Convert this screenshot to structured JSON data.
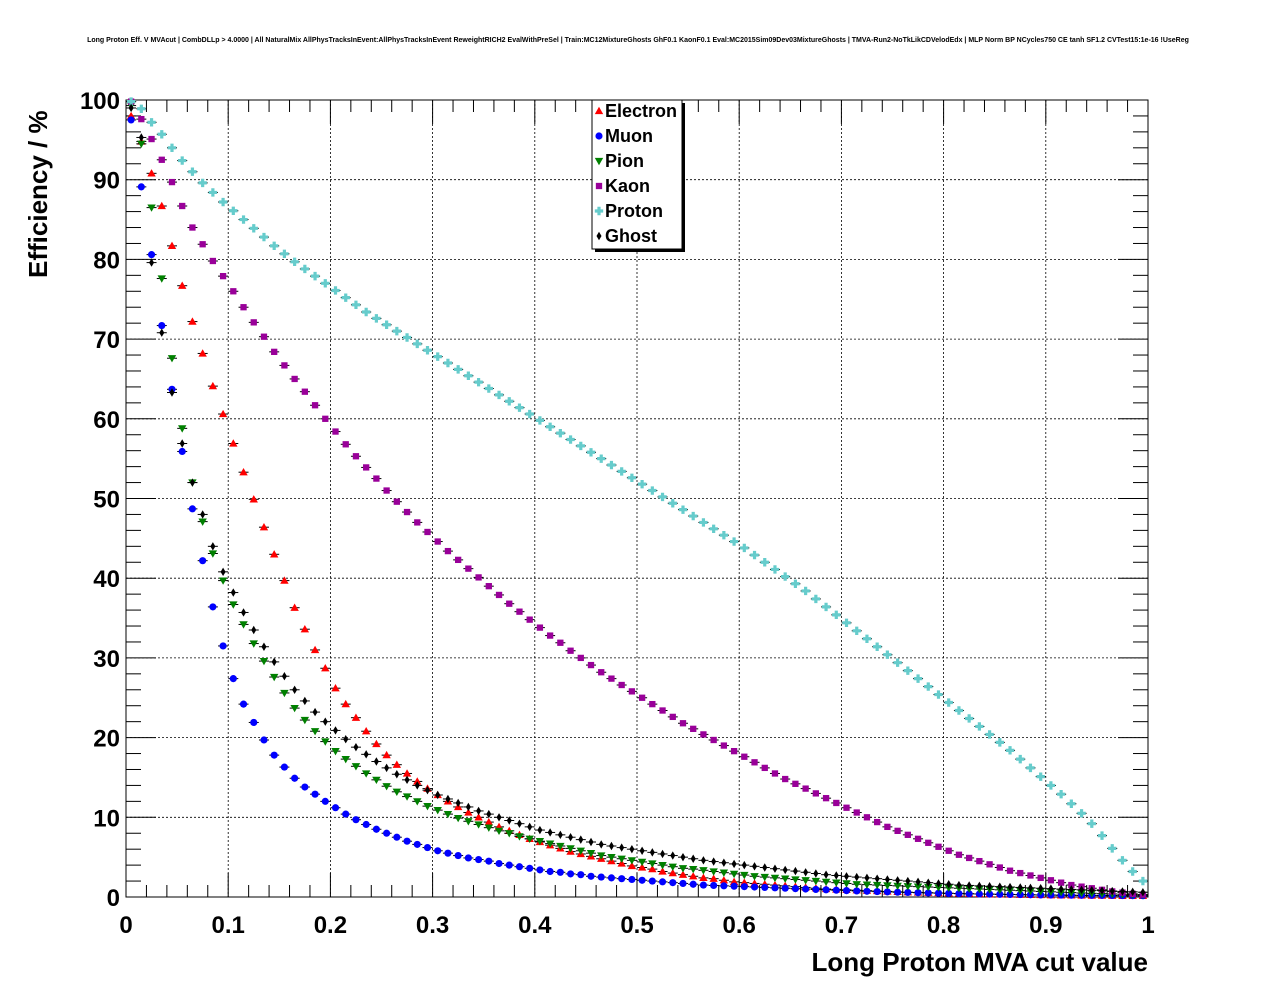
{
  "chart_data": {
    "type": "scatter",
    "title": "Long Proton Eff. V MVAcut | CombDLLp > 4.0000 | All NaturalMix AllPhysTracksInEvent:AllPhysTracksInEvent ReweightRICH2 EvalWithPreSel | Train:MC12MixtureGhosts GhF0.1 KaonF0.1 Eval:MC2015Sim09Dev03MixtureGhosts | TMVA-Run2-NoTkLikCDVelodEdx | MLP Norm BP NCycles750 CE tanh SF1.2 CVTest15:1e-16 !UseReg",
    "xlabel": "Long Proton MVA cut value",
    "ylabel": "Efficiency / %",
    "xlim": [
      0,
      1
    ],
    "ylim": [
      0,
      100
    ],
    "x_ticks": [
      "0",
      "0.1",
      "0.2",
      "0.3",
      "0.4",
      "0.5",
      "0.6",
      "0.7",
      "0.8",
      "0.9",
      "1"
    ],
    "y_ticks": [
      "0",
      "10",
      "20",
      "30",
      "40",
      "50",
      "60",
      "70",
      "80",
      "90",
      "100"
    ],
    "legend_position": "top-center",
    "x": [
      0.005,
      0.015,
      0.025,
      0.035,
      0.045,
      0.055,
      0.065,
      0.075,
      0.085,
      0.095,
      0.105,
      0.115,
      0.125,
      0.135,
      0.145,
      0.155,
      0.165,
      0.175,
      0.185,
      0.195,
      0.205,
      0.215,
      0.225,
      0.235,
      0.245,
      0.255,
      0.265,
      0.275,
      0.285,
      0.295,
      0.305,
      0.315,
      0.325,
      0.335,
      0.345,
      0.355,
      0.365,
      0.375,
      0.385,
      0.395,
      0.405,
      0.415,
      0.425,
      0.435,
      0.445,
      0.455,
      0.465,
      0.475,
      0.485,
      0.495,
      0.505,
      0.515,
      0.525,
      0.535,
      0.545,
      0.555,
      0.565,
      0.575,
      0.585,
      0.595,
      0.605,
      0.615,
      0.625,
      0.635,
      0.645,
      0.655,
      0.665,
      0.675,
      0.685,
      0.695,
      0.705,
      0.715,
      0.725,
      0.735,
      0.745,
      0.755,
      0.765,
      0.775,
      0.785,
      0.795,
      0.805,
      0.815,
      0.825,
      0.835,
      0.845,
      0.855,
      0.865,
      0.875,
      0.885,
      0.895,
      0.905,
      0.915,
      0.925,
      0.935,
      0.945,
      0.955,
      0.965,
      0.975,
      0.985,
      0.995
    ],
    "series": [
      {
        "name": "Electron",
        "color": "#ff0000",
        "marker": "triangle-up",
        "values": [
          98.0,
          94.8,
          90.8,
          86.7,
          81.7,
          76.7,
          72.2,
          68.2,
          64.1,
          60.6,
          56.9,
          53.3,
          49.9,
          46.4,
          43.0,
          39.7,
          36.3,
          33.6,
          31.0,
          28.7,
          26.2,
          24.2,
          22.5,
          20.8,
          19.2,
          17.8,
          16.6,
          15.5,
          14.5,
          13.6,
          12.8,
          12.0,
          11.3,
          10.6,
          10.0,
          9.4,
          8.8,
          8.3,
          7.8,
          7.3,
          6.9,
          6.5,
          6.1,
          5.7,
          5.4,
          5.1,
          4.8,
          4.5,
          4.2,
          3.9,
          3.7,
          3.5,
          3.2,
          3.0,
          2.8,
          2.6,
          2.4,
          2.3,
          2.1,
          1.9,
          1.8,
          1.7,
          1.6,
          1.5,
          1.4,
          1.3,
          1.2,
          1.1,
          1.0,
          0.95,
          0.9,
          0.85,
          0.8,
          0.75,
          0.7,
          0.65,
          0.6,
          0.57,
          0.54,
          0.5,
          0.47,
          0.44,
          0.41,
          0.38,
          0.35,
          0.33,
          0.31,
          0.29,
          0.27,
          0.25,
          0.23,
          0.21,
          0.2,
          0.19,
          0.18,
          0.17,
          0.16,
          0.15,
          0.15,
          0.15
        ]
      },
      {
        "name": "Muon",
        "color": "#0000ff",
        "marker": "circle",
        "values": [
          97.5,
          89.1,
          80.6,
          71.7,
          63.7,
          55.9,
          48.7,
          42.2,
          36.4,
          31.5,
          27.4,
          24.2,
          21.9,
          19.7,
          17.8,
          16.3,
          14.9,
          13.8,
          12.9,
          12.0,
          11.2,
          10.4,
          9.7,
          9.1,
          8.5,
          8.0,
          7.5,
          7.0,
          6.6,
          6.2,
          5.8,
          5.5,
          5.2,
          4.9,
          4.7,
          4.5,
          4.2,
          4.0,
          3.8,
          3.6,
          3.4,
          3.2,
          3.1,
          2.9,
          2.8,
          2.6,
          2.5,
          2.4,
          2.3,
          2.2,
          2.1,
          2.0,
          1.9,
          1.8,
          1.7,
          1.6,
          1.5,
          1.45,
          1.4,
          1.35,
          1.3,
          1.25,
          1.2,
          1.15,
          1.1,
          1.05,
          1.0,
          0.95,
          0.9,
          0.85,
          0.8,
          0.76,
          0.72,
          0.68,
          0.64,
          0.6,
          0.57,
          0.54,
          0.51,
          0.48,
          0.45,
          0.42,
          0.4,
          0.38,
          0.36,
          0.34,
          0.32,
          0.3,
          0.28,
          0.26,
          0.25,
          0.24,
          0.23,
          0.22,
          0.21,
          0.2,
          0.19,
          0.18,
          0.17,
          0.16
        ]
      },
      {
        "name": "Pion",
        "color": "#008000",
        "marker": "triangle-down",
        "values": [
          99.3,
          94.5,
          86.5,
          77.6,
          67.6,
          58.8,
          52.0,
          47.1,
          43.1,
          39.7,
          36.7,
          34.2,
          31.8,
          29.6,
          27.6,
          25.6,
          23.7,
          22.2,
          20.8,
          19.5,
          18.3,
          17.3,
          16.4,
          15.5,
          14.7,
          13.9,
          13.2,
          12.6,
          12.0,
          11.4,
          10.9,
          10.4,
          9.9,
          9.5,
          9.1,
          8.7,
          8.3,
          8.0,
          7.6,
          7.3,
          7.0,
          6.7,
          6.4,
          6.1,
          5.8,
          5.5,
          5.2,
          5.0,
          4.8,
          4.6,
          4.4,
          4.2,
          4.0,
          3.8,
          3.6,
          3.5,
          3.35,
          3.2,
          3.05,
          2.9,
          2.75,
          2.6,
          2.5,
          2.4,
          2.3,
          2.2,
          2.1,
          2.0,
          1.9,
          1.8,
          1.7,
          1.6,
          1.55,
          1.5,
          1.45,
          1.4,
          1.35,
          1.3,
          1.25,
          1.2,
          1.15,
          1.1,
          1.05,
          1.0,
          0.95,
          0.9,
          0.85,
          0.8,
          0.75,
          0.7,
          0.65,
          0.6,
          0.55,
          0.5,
          0.46,
          0.42,
          0.38,
          0.34,
          0.3,
          0.27
        ]
      },
      {
        "name": "Kaon",
        "color": "#990099",
        "marker": "square",
        "values": [
          99.8,
          97.6,
          95.1,
          92.5,
          89.7,
          86.7,
          84.0,
          81.9,
          79.8,
          77.9,
          76.0,
          74.0,
          72.1,
          70.3,
          68.4,
          66.7,
          65.0,
          63.4,
          61.7,
          60.0,
          58.4,
          56.8,
          55.3,
          53.9,
          52.5,
          51.0,
          49.6,
          48.3,
          47.0,
          45.8,
          44.6,
          43.4,
          42.3,
          41.2,
          40.1,
          39.0,
          37.9,
          36.8,
          35.8,
          34.8,
          33.8,
          32.8,
          31.9,
          30.9,
          30.0,
          29.1,
          28.2,
          27.4,
          26.6,
          25.8,
          25.0,
          24.2,
          23.4,
          22.6,
          21.8,
          21.1,
          20.4,
          19.7,
          19.0,
          18.3,
          17.6,
          16.9,
          16.2,
          15.5,
          14.8,
          14.2,
          13.6,
          13.0,
          12.4,
          11.8,
          11.2,
          10.6,
          10.0,
          9.4,
          8.8,
          8.3,
          7.8,
          7.3,
          6.8,
          6.3,
          5.8,
          5.3,
          4.9,
          4.5,
          4.1,
          3.7,
          3.3,
          3.0,
          2.7,
          2.4,
          2.1,
          1.8,
          1.5,
          1.3,
          1.1,
          0.9,
          0.7,
          0.55,
          0.4,
          0.3
        ]
      },
      {
        "name": "Proton",
        "color": "#66cccc",
        "marker": "cross",
        "values": [
          99.8,
          98.9,
          97.2,
          95.7,
          94.0,
          92.4,
          91.0,
          89.6,
          88.4,
          87.2,
          86.1,
          85.0,
          83.9,
          82.8,
          81.7,
          80.7,
          79.7,
          78.8,
          77.9,
          77.0,
          76.1,
          75.2,
          74.3,
          73.4,
          72.6,
          71.8,
          71.0,
          70.2,
          69.4,
          68.6,
          67.8,
          67.0,
          66.2,
          65.4,
          64.6,
          63.8,
          63.0,
          62.2,
          61.4,
          60.6,
          59.8,
          59.0,
          58.2,
          57.4,
          56.6,
          55.8,
          55.0,
          54.2,
          53.4,
          52.6,
          51.8,
          51.0,
          50.2,
          49.4,
          48.6,
          47.8,
          47.0,
          46.2,
          45.4,
          44.6,
          43.8,
          42.9,
          42.0,
          41.1,
          40.2,
          39.3,
          38.4,
          37.4,
          36.4,
          35.4,
          34.4,
          33.4,
          32.4,
          31.4,
          30.4,
          29.4,
          28.4,
          27.4,
          26.4,
          25.4,
          24.4,
          23.4,
          22.4,
          21.4,
          20.4,
          19.4,
          18.4,
          17.3,
          16.2,
          15.1,
          14.0,
          12.9,
          11.7,
          10.5,
          9.2,
          7.7,
          6.1,
          4.6,
          3.2,
          2.0
        ]
      },
      {
        "name": "Ghost",
        "color": "#000000",
        "marker": "diamond",
        "values": [
          99.0,
          95.3,
          79.6,
          70.8,
          63.3,
          56.9,
          52.0,
          48.0,
          44.0,
          40.8,
          38.2,
          35.7,
          33.5,
          31.4,
          29.5,
          27.7,
          26.0,
          24.6,
          23.2,
          22.0,
          20.9,
          19.8,
          18.8,
          17.9,
          17.0,
          16.2,
          15.4,
          14.7,
          14.0,
          13.4,
          12.8,
          12.3,
          11.8,
          11.3,
          10.8,
          10.4,
          10.0,
          9.6,
          9.2,
          8.8,
          8.4,
          8.1,
          7.8,
          7.5,
          7.2,
          6.9,
          6.6,
          6.4,
          6.2,
          6.0,
          5.8,
          5.6,
          5.4,
          5.2,
          5.0,
          4.8,
          4.6,
          4.45,
          4.3,
          4.15,
          4.0,
          3.85,
          3.7,
          3.55,
          3.4,
          3.25,
          3.1,
          2.95,
          2.8,
          2.7,
          2.6,
          2.5,
          2.4,
          2.3,
          2.2,
          2.1,
          2.0,
          1.9,
          1.8,
          1.7,
          1.6,
          1.5,
          1.45,
          1.4,
          1.35,
          1.3,
          1.25,
          1.2,
          1.15,
          1.1,
          1.05,
          1.0,
          0.95,
          0.9,
          0.85,
          0.8,
          0.75,
          0.7,
          0.65,
          0.6
        ]
      }
    ]
  }
}
